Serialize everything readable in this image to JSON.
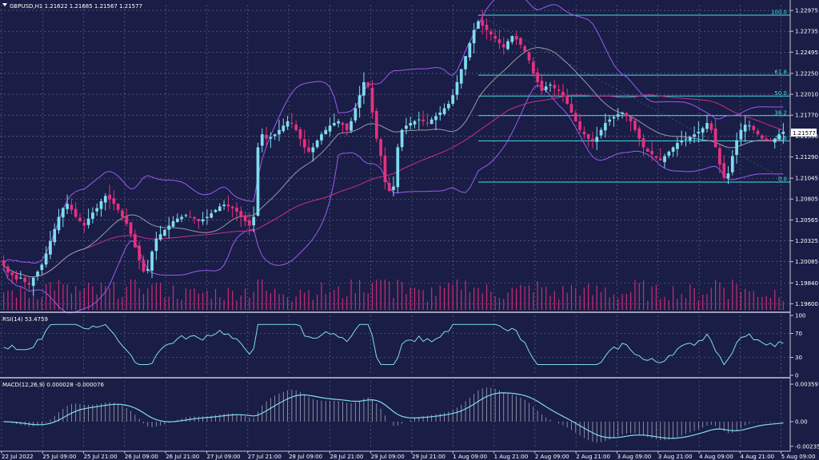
{
  "header": {
    "symbol_line": "GBPUSD,H1  1.21622 1.21685 1.21567 1.21577",
    "rsi_label": "RSI(14) 53.4759",
    "macd_label": "MACD(12,26,9) 0.000028 -0.000076"
  },
  "current_price_tag": "1.21577",
  "colors": {
    "background": "#1a1d45",
    "grid": "#6f7396",
    "bull": "#7fdcf0",
    "bear": "#e8307f",
    "bollinger": "#9b5cf0",
    "ma_slow": "#c72f8a",
    "ma_fast": "#9a9aa5",
    "fib": "#40e0e8",
    "rsi": "#7fdcf0",
    "macd_line": "#7fdcf0",
    "macd_hist": "#c8c8d8",
    "volume": "#e8307f",
    "text": "#ffffff"
  },
  "chart_data": [
    {
      "type": "candlestick",
      "panel": "price",
      "y_axis": {
        "ticks": [
          "1.22975",
          "1.22735",
          "1.22495",
          "1.22250",
          "1.22010",
          "1.21770",
          "1.21530",
          "1.21290",
          "1.21045",
          "1.20805",
          "1.20565",
          "1.20325",
          "1.20085",
          "1.19840",
          "1.19600"
        ],
        "range": [
          1.1953,
          1.2304
        ]
      },
      "x_axis_ticks": [
        "22 Jul 2022",
        "25 Jul 09:00",
        "25 Jul 21:00",
        "26 Jul 09:00",
        "26 Jul 21:00",
        "27 Jul 09:00",
        "27 Jul 21:00",
        "28 Jul 09:00",
        "28 Jul 21:00",
        "29 Jul 09:00",
        "29 Jul 21:00",
        "1 Aug 09:00",
        "1 Aug 21:00",
        "2 Aug 09:00",
        "2 Aug 21:00",
        "3 Aug 09:00",
        "3 Aug 21:00",
        "4 Aug 09:00",
        "4 Aug 21:00",
        "5 Aug 09:00"
      ],
      "close_path": [
        1.2004,
        1.1996,
        1.1993,
        1.1988,
        1.199,
        1.1985,
        1.1982,
        1.199,
        1.1997,
        1.2005,
        1.2018,
        1.2032,
        1.2046,
        1.206,
        1.207,
        1.2075,
        1.2068,
        1.206,
        1.2055,
        1.205,
        1.2058,
        1.2065,
        1.207,
        1.2078,
        1.2084,
        1.208,
        1.2075,
        1.2068,
        1.206,
        1.2052,
        1.204,
        1.2025,
        1.201,
        1.1997,
        1.2,
        1.202,
        1.2035,
        1.204,
        1.2045,
        1.205,
        1.2055,
        1.2058,
        1.206,
        1.2062,
        1.206,
        1.2058,
        1.2055,
        1.2057,
        1.206,
        1.2064,
        1.2068,
        1.2072,
        1.2074,
        1.2072,
        1.207,
        1.2066,
        1.206,
        1.2055,
        1.205,
        1.206,
        1.214,
        1.2155,
        1.215,
        1.2152,
        1.2155,
        1.216,
        1.2165,
        1.217,
        1.2168,
        1.216,
        1.215,
        1.214,
        1.2135,
        1.214,
        1.2148,
        1.2155,
        1.216,
        1.2165,
        1.2168,
        1.217,
        1.2166,
        1.216,
        1.217,
        1.2185,
        1.22,
        1.2215,
        1.221,
        1.218,
        1.215,
        1.213,
        1.21,
        1.209,
        1.2095,
        1.214,
        1.216,
        1.2165,
        1.2168,
        1.217,
        1.2172,
        1.217,
        1.2168,
        1.2172,
        1.2176,
        1.218,
        1.2185,
        1.219,
        1.22,
        1.2215,
        1.223,
        1.2245,
        1.226,
        1.2275,
        1.2285,
        1.228,
        1.2275,
        1.227,
        1.2265,
        1.226,
        1.2255,
        1.2262,
        1.2268,
        1.2264,
        1.2258,
        1.225,
        1.224,
        1.2225,
        1.2215,
        1.2205,
        1.221,
        1.2212,
        1.2208,
        1.2205,
        1.22,
        1.219,
        1.218,
        1.217,
        1.216,
        1.2155,
        1.215,
        1.2148,
        1.2152,
        1.216,
        1.2168,
        1.2172,
        1.2175,
        1.2178,
        1.218,
        1.2176,
        1.217,
        1.216,
        1.215,
        1.214,
        1.2135,
        1.2132,
        1.2128,
        1.2125,
        1.213,
        1.2135,
        1.214,
        1.2145,
        1.2148,
        1.215,
        1.2152,
        1.2155,
        1.2158,
        1.2162,
        1.2168,
        1.216,
        1.214,
        1.212,
        1.2105,
        1.211,
        1.213,
        1.2148,
        1.216,
        1.2166,
        1.2165,
        1.216,
        1.2155,
        1.215,
        1.2148,
        1.2147,
        1.215,
        1.2155,
        1.2158
      ],
      "fibonacci": [
        {
          "level": "100.0",
          "price": 1.2292
        },
        {
          "level": "61.8",
          "price": 1.2223
        },
        {
          "level": "50.0",
          "price": 1.2199
        },
        {
          "level": "38.2",
          "price": 1.21765
        },
        {
          "level": "23.6",
          "price": 1.21475
        },
        {
          "level": "0.0",
          "price": 1.21
        }
      ]
    },
    {
      "type": "line",
      "panel": "rsi",
      "name": "RSI(14)",
      "y_axis": {
        "ticks": [
          "100",
          "70",
          "30",
          "0"
        ],
        "range": [
          0,
          100
        ]
      },
      "levels": [
        70,
        30
      ],
      "current": 53.4759
    },
    {
      "type": "line+histogram",
      "panel": "macd",
      "name": "MACD(12,26,9)",
      "y_axis": {
        "ticks": [
          "0.00359",
          "0.00",
          "-0.002359"
        ],
        "range": [
          -0.0026,
          0.0039
        ]
      },
      "main": 2.8e-05,
      "signal": -7.6e-05
    }
  ]
}
